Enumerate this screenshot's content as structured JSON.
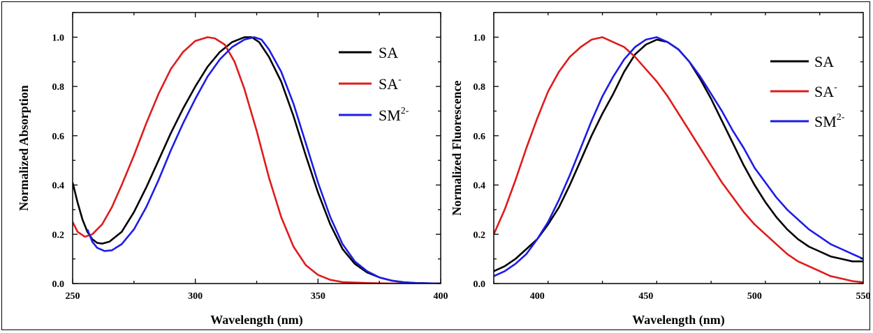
{
  "chart_data": [
    {
      "type": "line",
      "xlabel": "Wavelength (nm)",
      "ylabel": "Normalized Absorption",
      "xlim": [
        250,
        400
      ],
      "ylim": [
        0.0,
        1.1
      ],
      "xticks": [
        "250",
        "300",
        "350",
        "400"
      ],
      "yticks": [
        "0.0",
        "0.2",
        "0.4",
        "0.6",
        "0.8",
        "1.0"
      ],
      "ytick_values": [
        0.0,
        0.2,
        0.4,
        0.6,
        0.8,
        1.0
      ],
      "xtick_values": [
        250,
        300,
        350,
        400
      ],
      "legend_position": "top-right",
      "series": [
        {
          "name": "SA",
          "name_base": "SA",
          "name_sup": "",
          "color": "#000000",
          "points": [
            [
              250,
              0.41
            ],
            [
              252,
              0.33
            ],
            [
              254,
              0.26
            ],
            [
              256,
              0.21
            ],
            [
              258,
              0.18
            ],
            [
              260,
              0.165
            ],
            [
              262,
              0.162
            ],
            [
              265,
              0.17
            ],
            [
              270,
              0.21
            ],
            [
              275,
              0.29
            ],
            [
              280,
              0.39
            ],
            [
              285,
              0.5
            ],
            [
              290,
              0.61
            ],
            [
              295,
              0.71
            ],
            [
              300,
              0.8
            ],
            [
              305,
              0.88
            ],
            [
              310,
              0.94
            ],
            [
              315,
              0.98
            ],
            [
              320,
              1.0
            ],
            [
              323,
              1.0
            ],
            [
              326,
              0.98
            ],
            [
              330,
              0.92
            ],
            [
              335,
              0.82
            ],
            [
              340,
              0.68
            ],
            [
              345,
              0.52
            ],
            [
              350,
              0.37
            ],
            [
              355,
              0.24
            ],
            [
              360,
              0.14
            ],
            [
              365,
              0.08
            ],
            [
              370,
              0.045
            ],
            [
              375,
              0.025
            ],
            [
              380,
              0.012
            ],
            [
              385,
              0.005
            ],
            [
              390,
              0.002
            ],
            [
              400,
              0.0
            ]
          ]
        },
        {
          "name": "SA-",
          "name_base": "SA",
          "name_sup": "-",
          "color": "#e01b1b",
          "points": [
            [
              250,
              0.25
            ],
            [
              252,
              0.21
            ],
            [
              255,
              0.19
            ],
            [
              258,
              0.2
            ],
            [
              262,
              0.24
            ],
            [
              266,
              0.31
            ],
            [
              270,
              0.4
            ],
            [
              275,
              0.52
            ],
            [
              280,
              0.65
            ],
            [
              285,
              0.77
            ],
            [
              290,
              0.87
            ],
            [
              295,
              0.94
            ],
            [
              300,
              0.985
            ],
            [
              305,
              1.0
            ],
            [
              308,
              0.995
            ],
            [
              312,
              0.97
            ],
            [
              316,
              0.9
            ],
            [
              320,
              0.79
            ],
            [
              325,
              0.62
            ],
            [
              330,
              0.43
            ],
            [
              335,
              0.27
            ],
            [
              340,
              0.15
            ],
            [
              345,
              0.075
            ],
            [
              350,
              0.035
            ],
            [
              355,
              0.015
            ],
            [
              360,
              0.006
            ],
            [
              370,
              0.002
            ],
            [
              380,
              0.0
            ],
            [
              400,
              0.0
            ]
          ]
        },
        {
          "name": "SM2-",
          "name_base": "SM",
          "name_sup": "2-",
          "color": "#1c1ce6",
          "points": [
            [
              256,
              0.22
            ],
            [
              258,
              0.17
            ],
            [
              260,
              0.145
            ],
            [
              263,
              0.132
            ],
            [
              266,
              0.135
            ],
            [
              270,
              0.16
            ],
            [
              275,
              0.22
            ],
            [
              280,
              0.31
            ],
            [
              285,
              0.42
            ],
            [
              290,
              0.54
            ],
            [
              295,
              0.65
            ],
            [
              300,
              0.75
            ],
            [
              305,
              0.84
            ],
            [
              310,
              0.91
            ],
            [
              315,
              0.96
            ],
            [
              320,
              0.99
            ],
            [
              324,
              1.0
            ],
            [
              327,
              0.99
            ],
            [
              330,
              0.95
            ],
            [
              335,
              0.86
            ],
            [
              340,
              0.73
            ],
            [
              345,
              0.57
            ],
            [
              350,
              0.41
            ],
            [
              355,
              0.27
            ],
            [
              360,
              0.16
            ],
            [
              365,
              0.09
            ],
            [
              370,
              0.05
            ],
            [
              375,
              0.025
            ],
            [
              380,
              0.012
            ],
            [
              385,
              0.005
            ],
            [
              390,
              0.002
            ],
            [
              400,
              0.0
            ]
          ]
        }
      ]
    },
    {
      "type": "line",
      "xlabel": "Wavelength (nm)",
      "ylabel": "Normalized Fluorescence",
      "xlim": [
        380,
        550
      ],
      "ylim": [
        0.0,
        1.1
      ],
      "xticks": [
        "400",
        "450",
        "500",
        "550"
      ],
      "yticks": [
        "0.0",
        "0.2",
        "0.4",
        "0.6",
        "0.8",
        "1.0"
      ],
      "ytick_values": [
        0.0,
        0.2,
        0.4,
        0.6,
        0.8,
        1.0
      ],
      "xtick_values": [
        400,
        450,
        500,
        550
      ],
      "legend_position": "top-right",
      "series": [
        {
          "name": "SA",
          "name_base": "SA",
          "name_sup": "",
          "color": "#000000",
          "points": [
            [
              380,
              0.05
            ],
            [
              385,
              0.07
            ],
            [
              390,
              0.1
            ],
            [
              395,
              0.14
            ],
            [
              400,
              0.18
            ],
            [
              405,
              0.24
            ],
            [
              410,
              0.31
            ],
            [
              415,
              0.4
            ],
            [
              420,
              0.5
            ],
            [
              425,
              0.6
            ],
            [
              430,
              0.69
            ],
            [
              435,
              0.77
            ],
            [
              440,
              0.86
            ],
            [
              445,
              0.93
            ],
            [
              450,
              0.97
            ],
            [
              455,
              0.99
            ],
            [
              460,
              0.98
            ],
            [
              465,
              0.95
            ],
            [
              470,
              0.9
            ],
            [
              475,
              0.83
            ],
            [
              480,
              0.75
            ],
            [
              485,
              0.66
            ],
            [
              490,
              0.57
            ],
            [
              495,
              0.48
            ],
            [
              500,
              0.4
            ],
            [
              505,
              0.33
            ],
            [
              510,
              0.27
            ],
            [
              515,
              0.22
            ],
            [
              520,
              0.18
            ],
            [
              525,
              0.15
            ],
            [
              530,
              0.13
            ],
            [
              535,
              0.11
            ],
            [
              540,
              0.1
            ],
            [
              545,
              0.09
            ],
            [
              550,
              0.09
            ]
          ]
        },
        {
          "name": "SA-",
          "name_base": "SA",
          "name_sup": "-",
          "color": "#e01b1b",
          "points": [
            [
              380,
              0.2
            ],
            [
              385,
              0.3
            ],
            [
              390,
              0.42
            ],
            [
              395,
              0.55
            ],
            [
              400,
              0.67
            ],
            [
              405,
              0.78
            ],
            [
              410,
              0.86
            ],
            [
              415,
              0.92
            ],
            [
              420,
              0.96
            ],
            [
              425,
              0.99
            ],
            [
              430,
              1.0
            ],
            [
              435,
              0.98
            ],
            [
              440,
              0.96
            ],
            [
              445,
              0.92
            ],
            [
              450,
              0.87
            ],
            [
              455,
              0.82
            ],
            [
              460,
              0.76
            ],
            [
              465,
              0.69
            ],
            [
              470,
              0.62
            ],
            [
              475,
              0.55
            ],
            [
              480,
              0.48
            ],
            [
              485,
              0.41
            ],
            [
              490,
              0.35
            ],
            [
              495,
              0.29
            ],
            [
              500,
              0.24
            ],
            [
              505,
              0.2
            ],
            [
              510,
              0.16
            ],
            [
              515,
              0.12
            ],
            [
              520,
              0.09
            ],
            [
              525,
              0.07
            ],
            [
              530,
              0.05
            ],
            [
              535,
              0.03
            ],
            [
              540,
              0.02
            ],
            [
              545,
              0.01
            ],
            [
              550,
              0.005
            ]
          ]
        },
        {
          "name": "SM2-",
          "name_base": "SM",
          "name_sup": "2-",
          "color": "#1c1ce6",
          "points": [
            [
              380,
              0.03
            ],
            [
              385,
              0.05
            ],
            [
              390,
              0.08
            ],
            [
              395,
              0.12
            ],
            [
              400,
              0.18
            ],
            [
              405,
              0.25
            ],
            [
              410,
              0.34
            ],
            [
              415,
              0.44
            ],
            [
              420,
              0.55
            ],
            [
              425,
              0.66
            ],
            [
              430,
              0.76
            ],
            [
              435,
              0.84
            ],
            [
              440,
              0.91
            ],
            [
              445,
              0.96
            ],
            [
              450,
              0.99
            ],
            [
              455,
              1.0
            ],
            [
              460,
              0.98
            ],
            [
              465,
              0.95
            ],
            [
              470,
              0.9
            ],
            [
              475,
              0.84
            ],
            [
              480,
              0.77
            ],
            [
              485,
              0.7
            ],
            [
              490,
              0.62
            ],
            [
              495,
              0.55
            ],
            [
              500,
              0.47
            ],
            [
              505,
              0.41
            ],
            [
              510,
              0.35
            ],
            [
              515,
              0.3
            ],
            [
              520,
              0.26
            ],
            [
              525,
              0.22
            ],
            [
              530,
              0.19
            ],
            [
              535,
              0.16
            ],
            [
              540,
              0.14
            ],
            [
              545,
              0.12
            ],
            [
              550,
              0.1
            ]
          ]
        }
      ]
    }
  ]
}
